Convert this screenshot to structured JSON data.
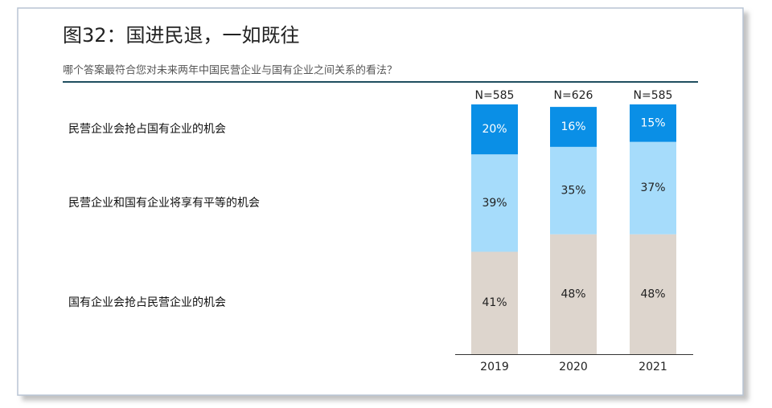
{
  "chart_data": {
    "type": "stacked-bar",
    "title": "图32：国进民退，一如既往",
    "subtitle": "哪个答案最符合您对未来两年中国民营企业与国有企业之间关系的看法？",
    "categories": [
      "2019",
      "2020",
      "2021"
    ],
    "n_labels": [
      "N=585",
      "N=626",
      "N=585"
    ],
    "series": [
      {
        "name": "国有企业会抢占民营企业的机会",
        "color": "#ddd5cd",
        "values": [
          41,
          48,
          48
        ],
        "value_labels": [
          "41%",
          "48%",
          "48%"
        ]
      },
      {
        "name": "民营企业和国有企业将享有平等的机会",
        "color": "#a6dcfb",
        "values": [
          39,
          35,
          37
        ],
        "value_labels": [
          "39%",
          "35%",
          "37%"
        ]
      },
      {
        "name": "民营企业会抢占国有企业的机会",
        "color": "#0a8fe6",
        "values": [
          20,
          16,
          15
        ],
        "value_labels": [
          "20%",
          "16%",
          "15%"
        ]
      }
    ]
  }
}
